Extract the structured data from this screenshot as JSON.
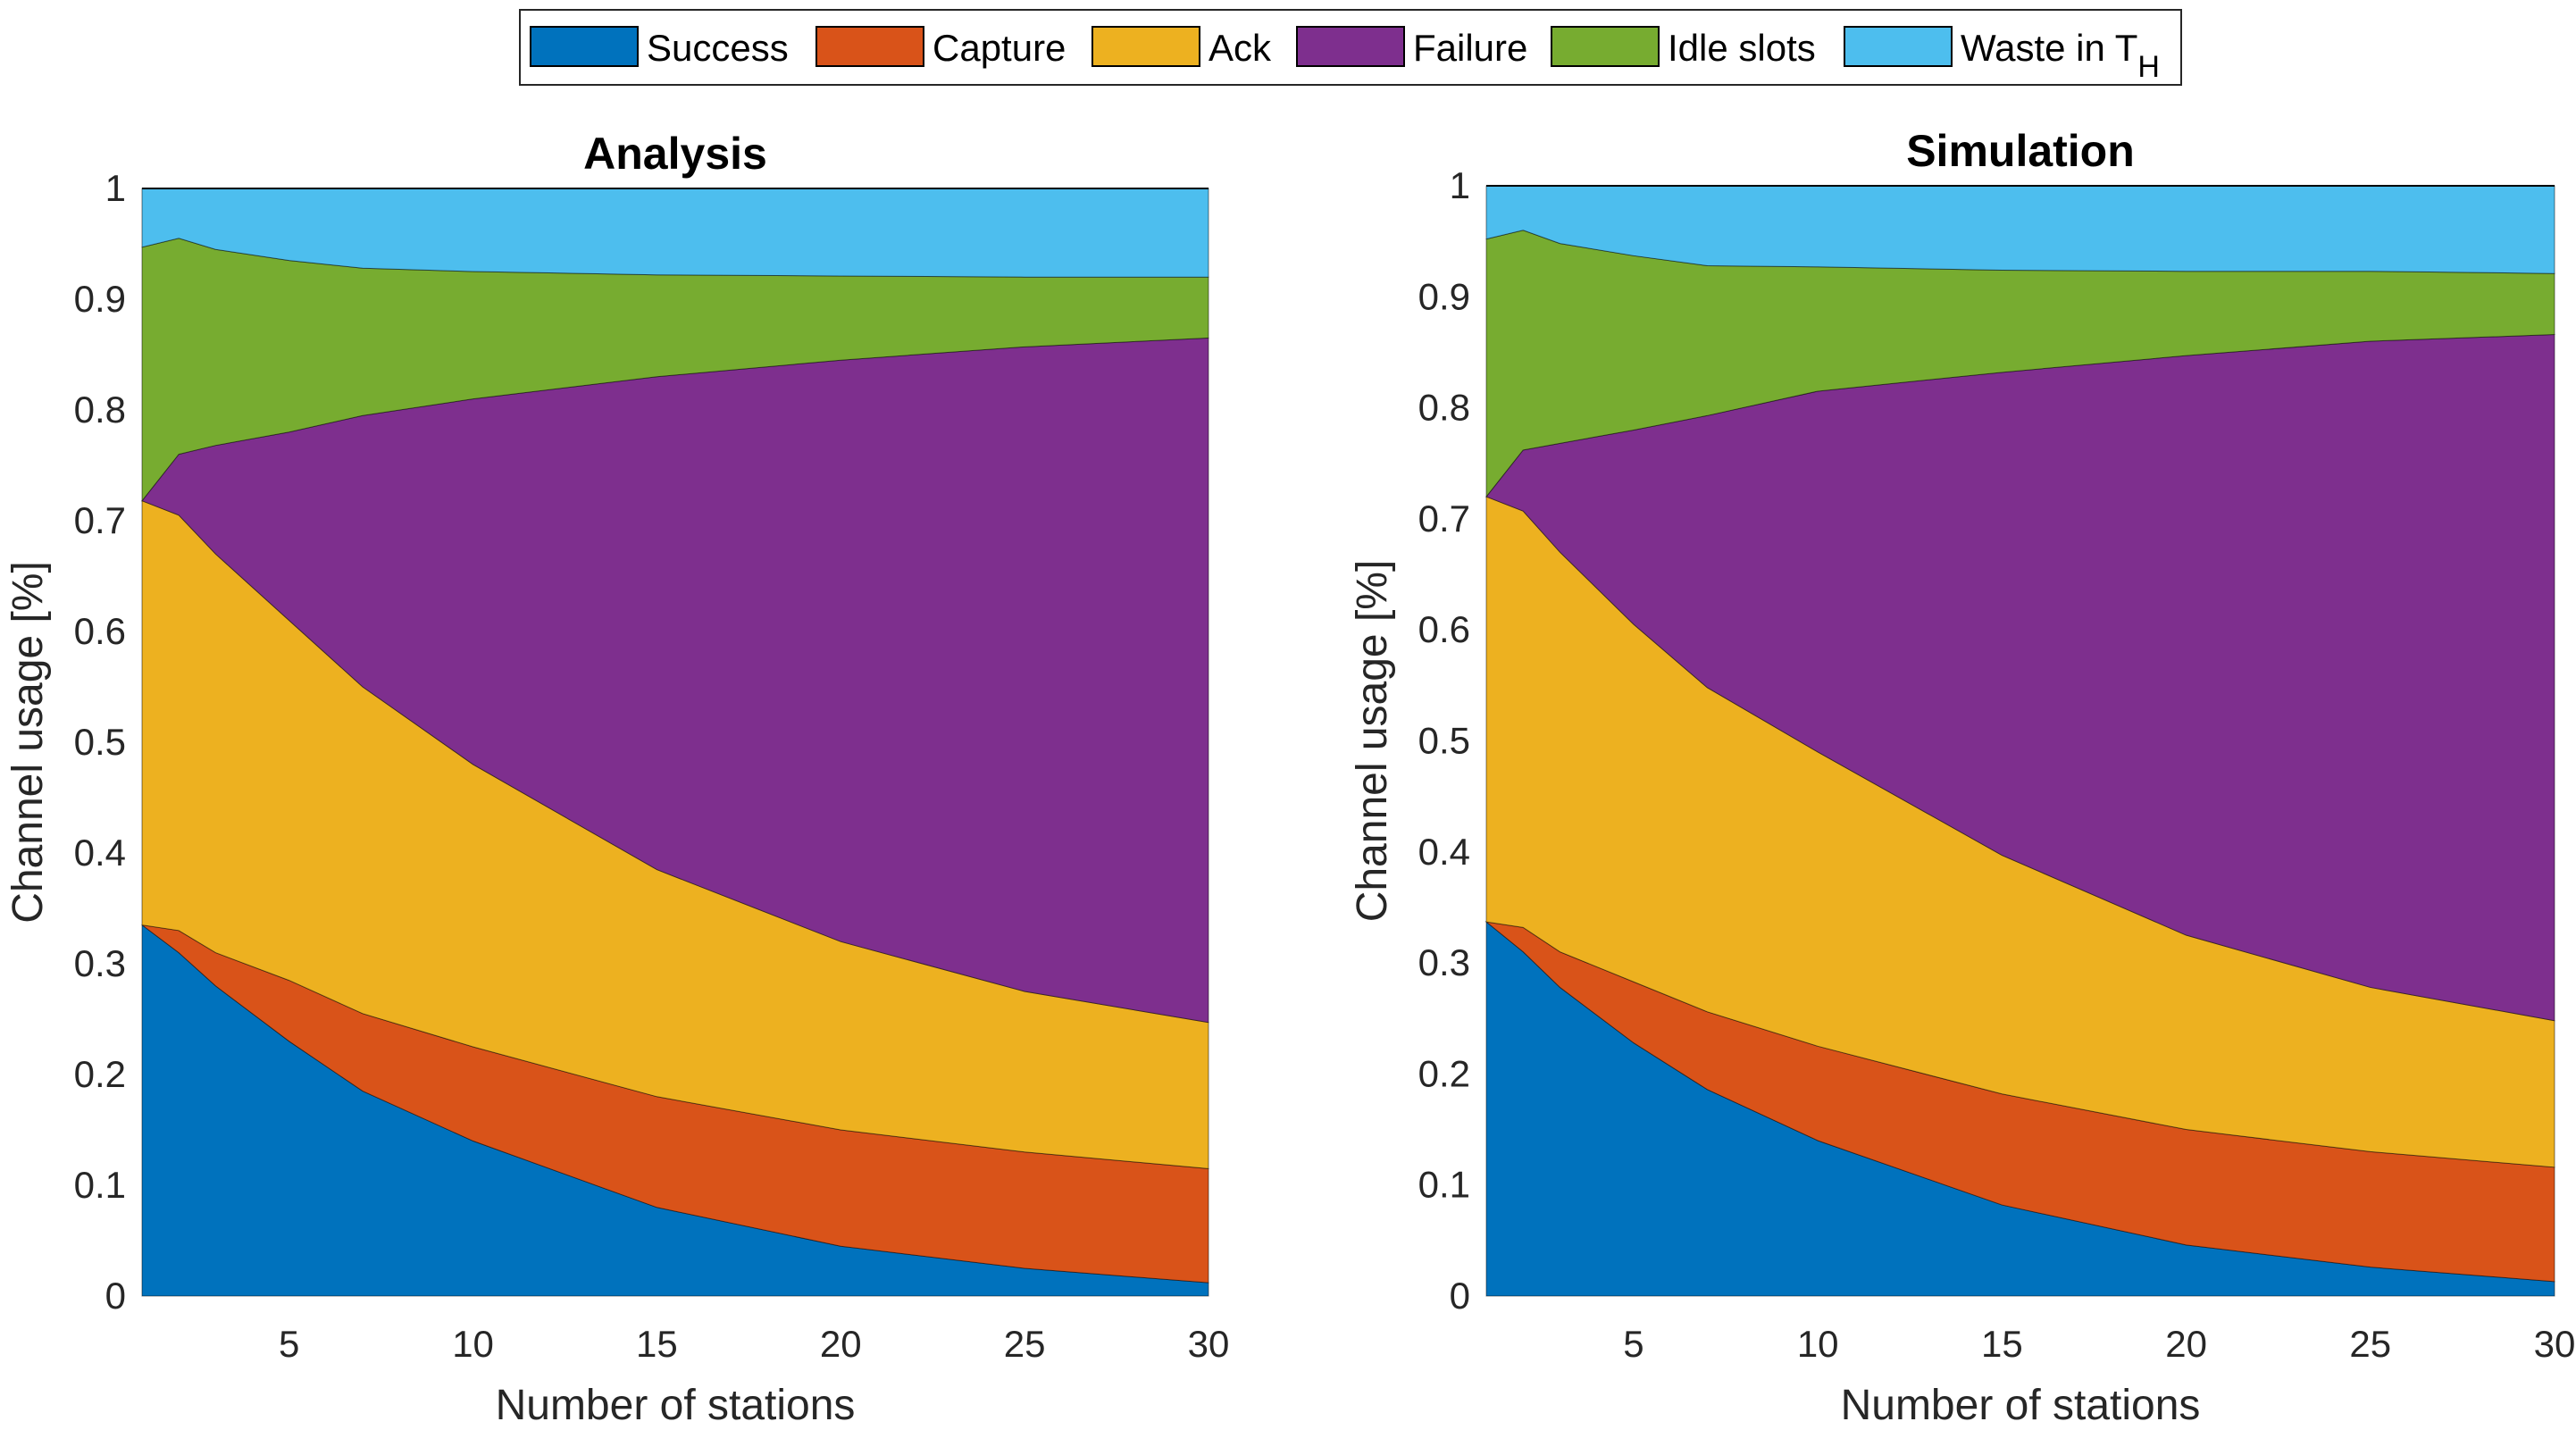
{
  "legend": [
    {
      "label": "Success",
      "color": "#0072BD"
    },
    {
      "label": "Capture",
      "color": "#D95319"
    },
    {
      "label": "Ack",
      "color": "#EDB120"
    },
    {
      "label": "Failure",
      "color": "#7E2F8E"
    },
    {
      "label": "Idle slots",
      "color": "#77AC30"
    },
    {
      "label": "Waste in T",
      "sub": "H",
      "color": "#4DBEEE"
    }
  ],
  "chart_data": [
    {
      "type": "area",
      "stacked": true,
      "title": "Analysis",
      "xlabel": "Number of stations",
      "ylabel": "Channel usage [%]",
      "xlim": [
        1,
        30
      ],
      "ylim": [
        0,
        1
      ],
      "xticks": [
        5,
        10,
        15,
        20,
        25,
        30
      ],
      "yticks": [
        0,
        0.1,
        0.2,
        0.3,
        0.4,
        0.5,
        0.6,
        0.7,
        0.8,
        0.9,
        1
      ],
      "x": [
        1,
        2,
        3,
        5,
        7,
        10,
        15,
        20,
        25,
        30
      ],
      "series": [
        {
          "name": "Success",
          "values": [
            0.335,
            0.31,
            0.28,
            0.23,
            0.185,
            0.14,
            0.08,
            0.045,
            0.025,
            0.012
          ]
        },
        {
          "name": "Capture",
          "values": [
            0,
            0.02,
            0.03,
            0.055,
            0.07,
            0.085,
            0.1,
            0.105,
            0.105,
            0.103
          ]
        },
        {
          "name": "Ack",
          "values": [
            0.383,
            0.375,
            0.36,
            0.325,
            0.295,
            0.255,
            0.205,
            0.17,
            0.145,
            0.132
          ]
        },
        {
          "name": "Failure",
          "values": [
            0,
            0.055,
            0.098,
            0.17,
            0.245,
            0.33,
            0.445,
            0.525,
            0.582,
            0.618
          ]
        },
        {
          "name": "Idle slots",
          "values": [
            0.229,
            0.195,
            0.177,
            0.155,
            0.133,
            0.115,
            0.092,
            0.076,
            0.063,
            0.055
          ]
        },
        {
          "name": "Waste in TH",
          "values": [
            0.053,
            0.045,
            0.055,
            0.065,
            0.072,
            0.075,
            0.078,
            0.079,
            0.08,
            0.08
          ]
        }
      ]
    },
    {
      "type": "area",
      "stacked": true,
      "title": "Simulation",
      "xlabel": "Number of stations",
      "ylabel": "Channel usage [%]",
      "xlim": [
        1,
        30
      ],
      "ylim": [
        0,
        1
      ],
      "xticks": [
        5,
        10,
        15,
        20,
        25,
        30
      ],
      "yticks": [
        0,
        0.1,
        0.2,
        0.3,
        0.4,
        0.5,
        0.6,
        0.7,
        0.8,
        0.9,
        1
      ],
      "x": [
        1,
        2,
        3,
        5,
        7,
        10,
        15,
        20,
        25,
        30
      ],
      "series": [
        {
          "name": "Success",
          "values": [
            0.337,
            0.31,
            0.278,
            0.228,
            0.186,
            0.14,
            0.082,
            0.046,
            0.026,
            0.013
          ]
        },
        {
          "name": "Capture",
          "values": [
            0,
            0.022,
            0.032,
            0.055,
            0.07,
            0.085,
            0.1,
            0.104,
            0.104,
            0.103
          ]
        },
        {
          "name": "Ack",
          "values": [
            0.383,
            0.375,
            0.36,
            0.322,
            0.292,
            0.265,
            0.215,
            0.175,
            0.148,
            0.132
          ]
        },
        {
          "name": "Failure",
          "values": [
            0,
            0.055,
            0.098,
            0.175,
            0.245,
            0.325,
            0.435,
            0.522,
            0.582,
            0.618
          ]
        },
        {
          "name": "Idle slots",
          "values": [
            0.232,
            0.198,
            0.18,
            0.157,
            0.135,
            0.112,
            0.092,
            0.076,
            0.063,
            0.055
          ]
        },
        {
          "name": "Waste in TH",
          "values": [
            0.048,
            0.04,
            0.052,
            0.063,
            0.072,
            0.073,
            0.076,
            0.077,
            0.077,
            0.079
          ]
        }
      ]
    }
  ]
}
